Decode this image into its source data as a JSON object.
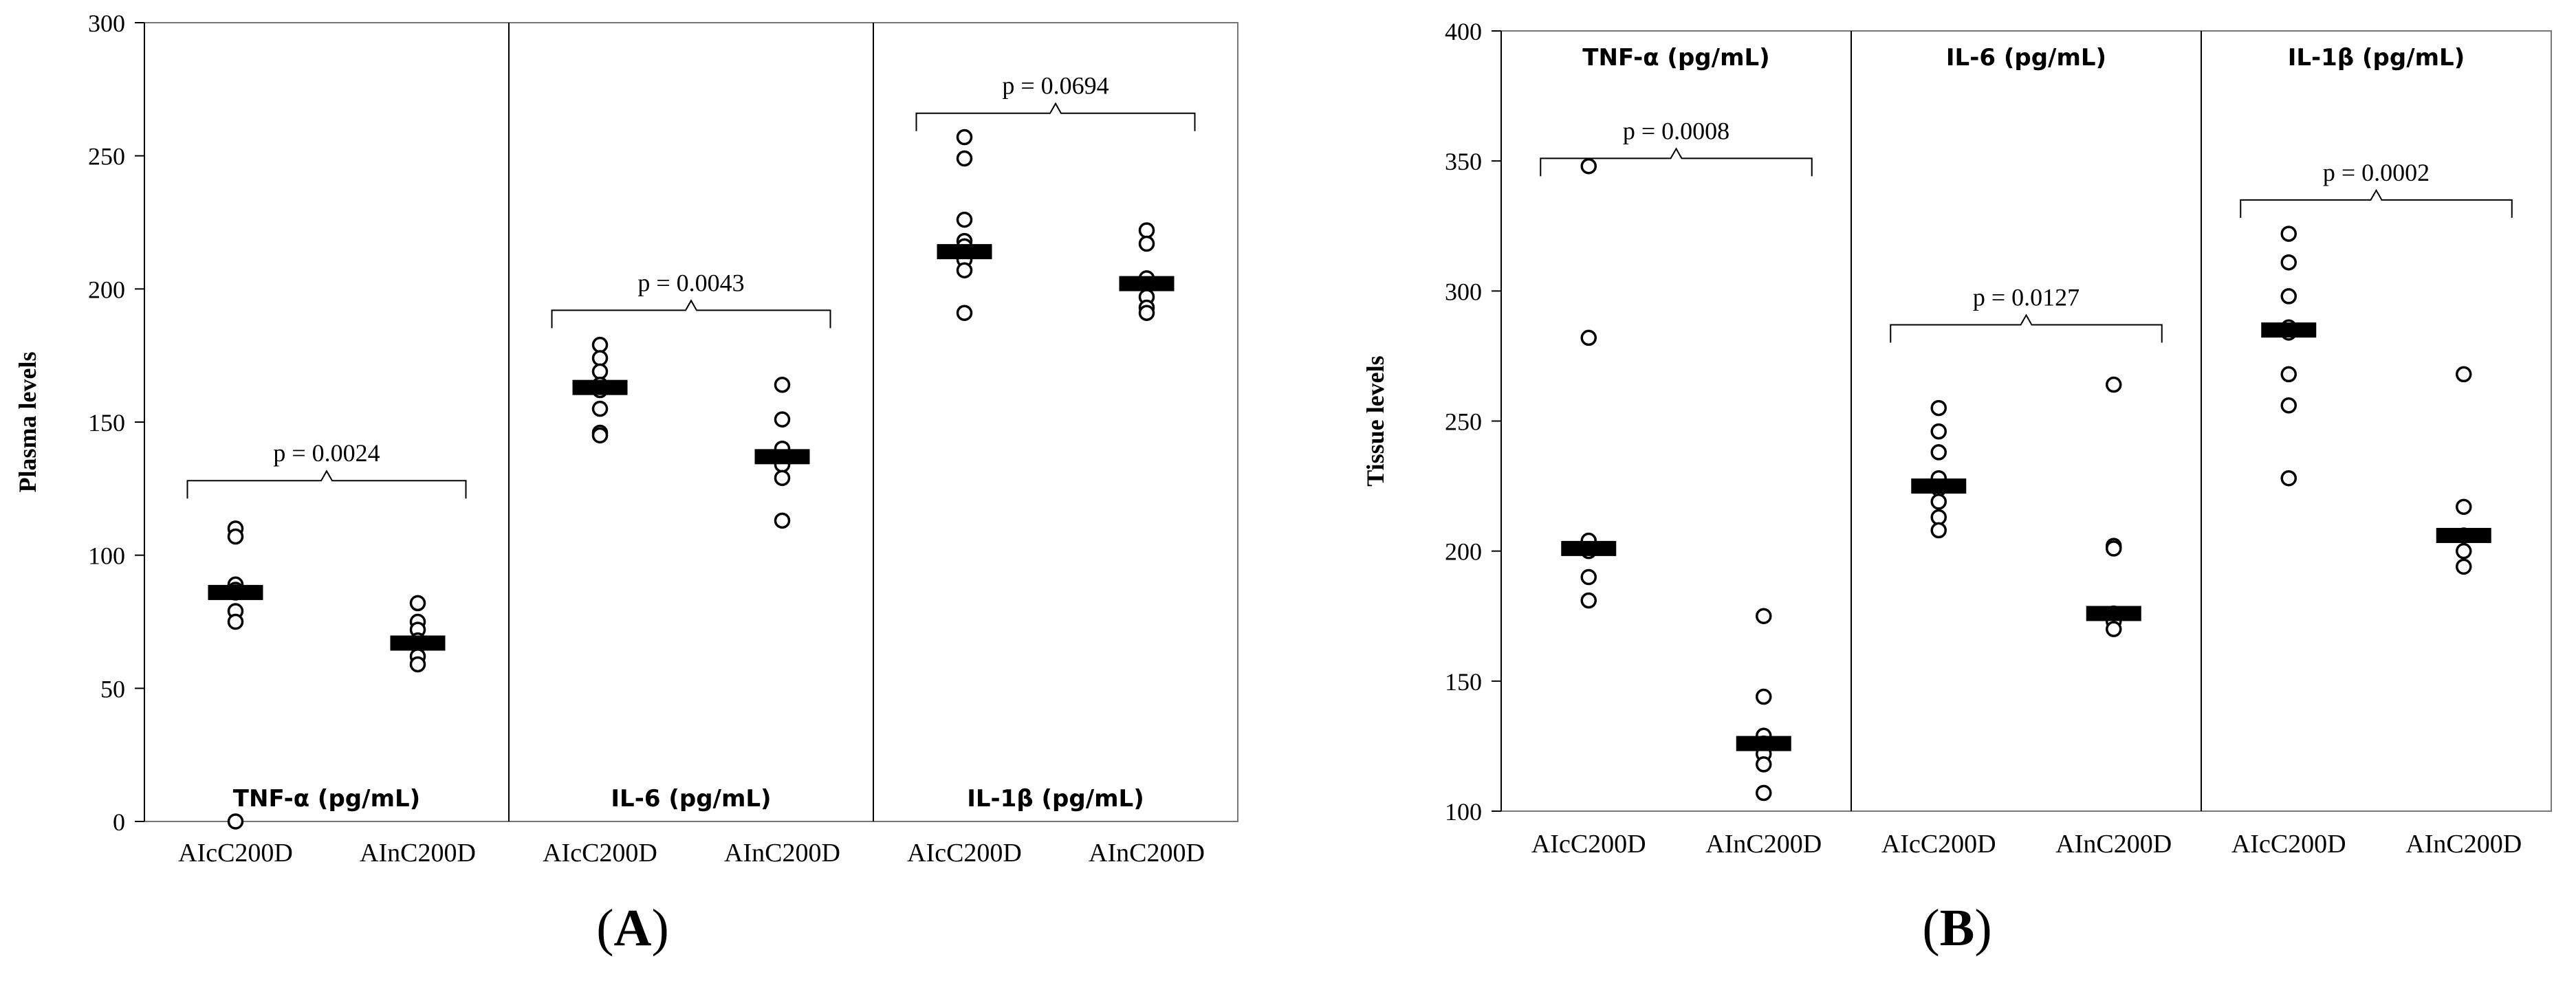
{
  "chart_data": [
    {
      "id": "A",
      "type": "scatter",
      "panel_label": "(A)",
      "ylabel": "Plasma levels",
      "ylim": [
        0,
        300
      ],
      "yticks": [
        0,
        50,
        100,
        150,
        200,
        250,
        300
      ],
      "groups": [
        "AIcC200D",
        "AInC200D"
      ],
      "sections": [
        {
          "label": "TNF-α (pg/mL)",
          "label_pos": "bottom",
          "p_value": "p = 0.0024",
          "bracket_y": 128,
          "points": [
            [
              110,
              107,
              89,
              87,
              86,
              79,
              75,
              0
            ],
            [
              82,
              75,
              72,
              68,
              66,
              62,
              59
            ]
          ],
          "means": [
            86,
            67
          ]
        },
        {
          "label": "IL-6 (pg/mL)",
          "label_pos": "bottom",
          "p_value": "p = 0.0043",
          "bracket_y": 192,
          "points": [
            [
              179,
              174,
              169,
              164,
              162,
              155,
              146,
              145
            ],
            [
              164,
              151,
              140,
              134,
              129,
              113
            ]
          ],
          "means": [
            163,
            137
          ]
        },
        {
          "label": "IL-1β  (pg/mL)",
          "label_pos": "bottom",
          "p_value": "p = 0.0694",
          "bracket_y": 266,
          "points": [
            [
              257,
              249,
              226,
              218,
              216,
              211,
              207,
              191
            ],
            [
              222,
              217,
              204,
              197,
              193,
              191
            ]
          ],
          "means": [
            214,
            202
          ]
        }
      ]
    },
    {
      "id": "B",
      "type": "scatter",
      "panel_label": "(B)",
      "ylabel": "Tissue levels",
      "ylim": [
        100,
        400
      ],
      "yticks": [
        100,
        150,
        200,
        250,
        300,
        350,
        400
      ],
      "groups": [
        "AIcC200D",
        "AInC200D"
      ],
      "sections": [
        {
          "label": "TNF-α (pg/mL)",
          "label_pos": "top",
          "p_value": "p = 0.0008",
          "bracket_y": 351,
          "points": [
            [
              348,
              282,
              204,
              200,
              190,
              181
            ],
            [
              175,
              144,
              129,
              126,
              122,
              118,
              107
            ]
          ],
          "means": [
            201,
            126
          ]
        },
        {
          "label": "IL-6 (pg/mL)",
          "label_pos": "top",
          "p_value": "p = 0.0127",
          "bracket_y": 287,
          "points": [
            [
              255,
              246,
              238,
              228,
              224,
              219,
              213,
              208
            ],
            [
              264,
              202,
              201,
              176,
              173,
              170
            ]
          ],
          "means": [
            225,
            176
          ]
        },
        {
          "label": "IL-1β  (pg/mL)",
          "label_pos": "top",
          "p_value": "p = 0.0002",
          "bracket_y": 335,
          "points": [
            [
              322,
              311,
              298,
              286,
              284,
              268,
              256,
              228
            ],
            [
              268,
              217,
              206,
              200,
              194
            ]
          ],
          "means": [
            285,
            206
          ]
        }
      ]
    }
  ]
}
